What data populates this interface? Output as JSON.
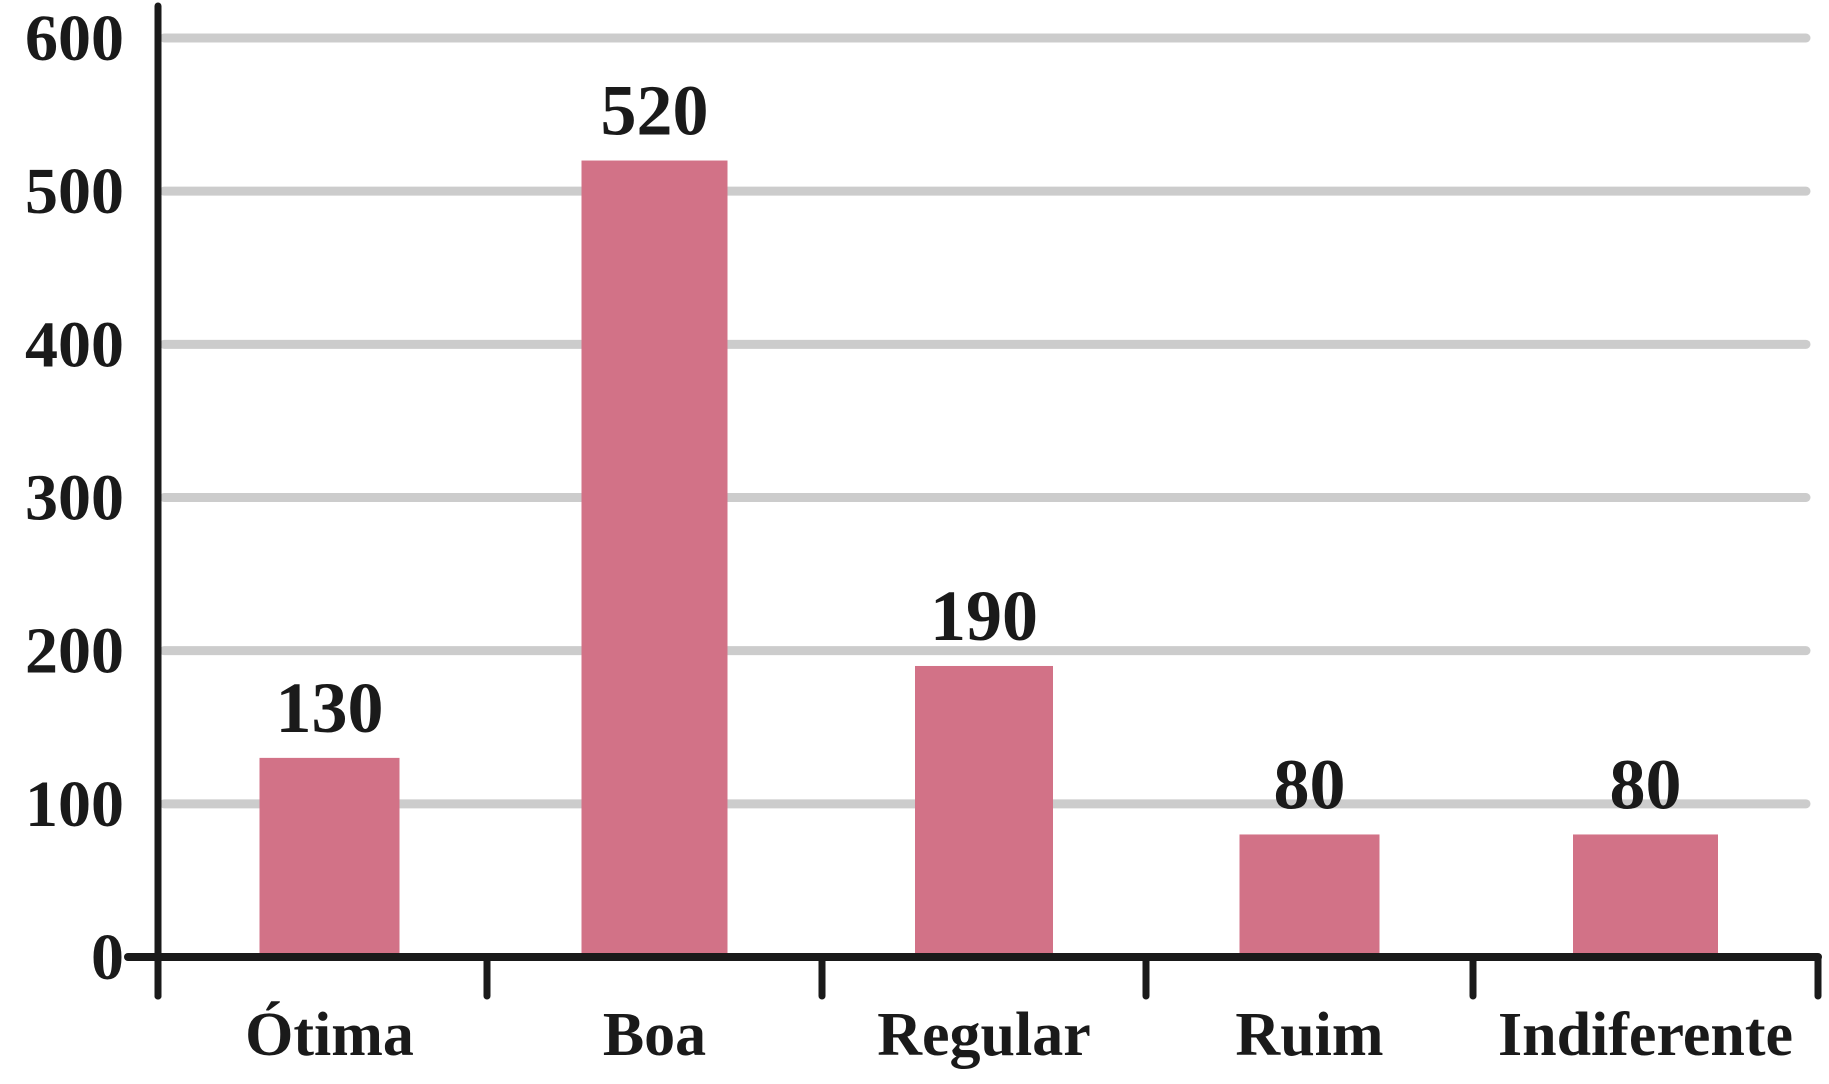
{
  "chart_data": {
    "type": "bar",
    "categories": [
      "Ótima",
      "Boa",
      "Regular",
      "Ruim",
      "Indiferente"
    ],
    "values": [
      130,
      520,
      190,
      80,
      80
    ],
    "data_labels": [
      "130",
      "520",
      "190",
      "80",
      "80"
    ],
    "yticks": [
      0,
      100,
      200,
      300,
      400,
      500,
      600
    ],
    "ytick_labels": [
      "0",
      "100",
      "200",
      "300",
      "400",
      "500",
      "600"
    ],
    "ylim": [
      0,
      600
    ],
    "title": "",
    "xlabel": "",
    "ylabel": "",
    "grid": true,
    "bar_color": "#d27287",
    "grid_color": "#cccccc",
    "axis_color": "#1a1a1a"
  }
}
